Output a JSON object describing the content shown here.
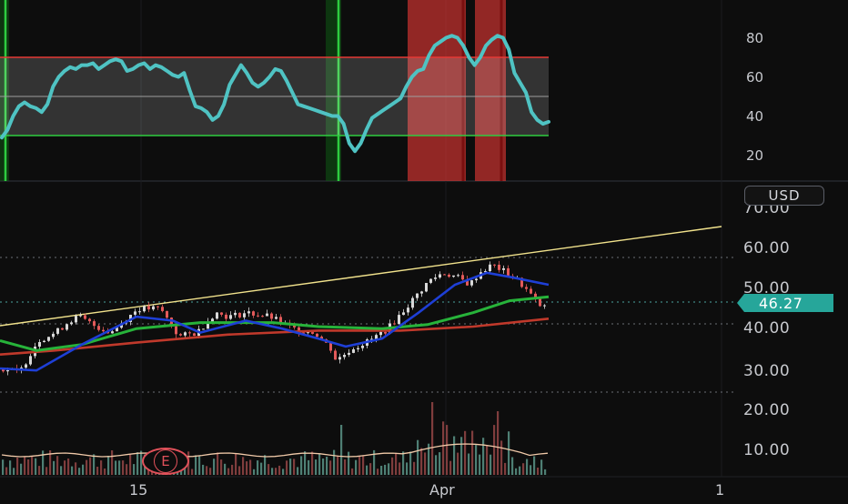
{
  "colors": {
    "background": "#0d0d0d",
    "rsi_line": "#4fc3c3",
    "overbought": "#e53935",
    "oversold": "#2ecc40",
    "trendline": "#f1e28c",
    "ema_fast": "#1e3fd6",
    "ema_mid": "#27b33a",
    "ema_slow": "#c0392b",
    "candle_up": "#d8d8d8",
    "candle_down": "#e35a5a",
    "last_price_bg": "#26a69a"
  },
  "rsi_pane": {
    "axis_ticks": [
      "80",
      "60",
      "40",
      "20"
    ]
  },
  "price_pane": {
    "currency": "USD",
    "axis_ticks": [
      "70.00",
      "60.00",
      "50.00",
      "40.00",
      "30.00",
      "20.00",
      "10.00"
    ],
    "last_price": "46.27"
  },
  "time_axis": {
    "labels": [
      "15",
      "Apr",
      "1"
    ]
  },
  "earnings_marker": {
    "label": "E"
  },
  "chart_data": {
    "type": "line",
    "series": [
      {
        "values": [
          29,
          33,
          40,
          45,
          47,
          45,
          44,
          42,
          46,
          55,
          60,
          63,
          65,
          64,
          66,
          66,
          67,
          64,
          66,
          68,
          69,
          68,
          63,
          64,
          66,
          67,
          64,
          66,
          65,
          63,
          61,
          60,
          62,
          53,
          45,
          44,
          42,
          38,
          40,
          46,
          56,
          61,
          66,
          62,
          57,
          55,
          57,
          60,
          64,
          63,
          58,
          52,
          46,
          45,
          44,
          43,
          42,
          41,
          40,
          40,
          36,
          26,
          22,
          26,
          33,
          39,
          41,
          43,
          45,
          47,
          49,
          55,
          60,
          63,
          64,
          71,
          76,
          78,
          80,
          81,
          80,
          76,
          70,
          66,
          70,
          76,
          79,
          81,
          80,
          74,
          62,
          57,
          52,
          42,
          38,
          36,
          37
        ]
      }
    ],
    "ylim_rsi": [
      10,
      90
    ],
    "price_levels": {
      "ylim": [
        15,
        70
      ],
      "last": 46.27
    }
  }
}
